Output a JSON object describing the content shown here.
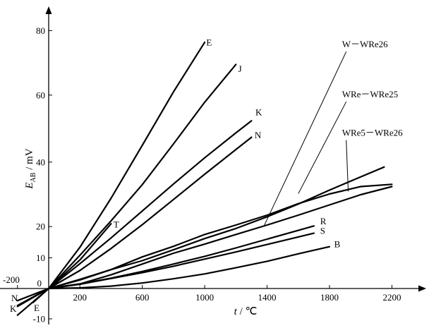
{
  "chart_data": {
    "type": "line",
    "title": "",
    "xlabel": {
      "var": "t",
      "sep": " / ",
      "unit": "℃"
    },
    "ylabel": {
      "var": "E",
      "sub": "AB",
      "sep": " / ",
      "unit": "mV"
    },
    "xlim": [
      -200,
      2300
    ],
    "ylim": [
      -12,
      90
    ],
    "x_ticks": [
      -200,
      0,
      200,
      600,
      1000,
      1400,
      1800,
      2200
    ],
    "x_tick_labels": [
      "-200",
      "",
      "200",
      "600",
      "1000",
      "1400",
      "1800",
      "2200"
    ],
    "y_ticks": [
      -10,
      0,
      10,
      20,
      40,
      60,
      80
    ],
    "y_tick_labels": [
      "-10",
      "0",
      "10",
      "20",
      "40",
      "60",
      "80"
    ],
    "grid": false,
    "legend": "none",
    "series": [
      {
        "name": "E",
        "x": [
          -200,
          0,
          200,
          400,
          600,
          800,
          1000
        ],
        "y": [
          -8.8,
          0,
          13.4,
          28.9,
          45.1,
          61.0,
          76.4
        ]
      },
      {
        "name": "J",
        "x": [
          -100,
          0,
          200,
          400,
          600,
          800,
          1000,
          1200
        ],
        "y": [
          -4.6,
          0,
          10.8,
          21.8,
          33.1,
          45.5,
          57.9,
          69.5
        ]
      },
      {
        "name": "K",
        "x": [
          -200,
          0,
          200,
          400,
          600,
          800,
          1000,
          1200,
          1300
        ],
        "y": [
          -5.9,
          0,
          8.1,
          16.4,
          24.9,
          33.3,
          41.3,
          48.8,
          52.4
        ]
      },
      {
        "name": "N",
        "x": [
          -200,
          0,
          200,
          400,
          600,
          800,
          1000,
          1200,
          1300
        ],
        "y": [
          -4.0,
          0,
          5.9,
          13.0,
          20.6,
          28.5,
          36.3,
          43.8,
          47.5
        ]
      },
      {
        "name": "T",
        "x": [
          -200,
          0,
          200,
          400
        ],
        "y": [
          -5.6,
          0,
          9.3,
          20.9
        ]
      },
      {
        "name": "R",
        "x": [
          0,
          200,
          400,
          600,
          800,
          1000,
          1200,
          1400,
          1600,
          1700
        ],
        "y": [
          0,
          1.5,
          3.4,
          5.6,
          8.0,
          10.5,
          13.2,
          16.0,
          18.8,
          20.2
        ]
      },
      {
        "name": "S",
        "x": [
          0,
          200,
          400,
          600,
          800,
          1000,
          1200,
          1400,
          1600,
          1700
        ],
        "y": [
          0,
          1.4,
          3.3,
          5.2,
          7.3,
          9.6,
          11.9,
          14.3,
          16.7,
          17.9
        ]
      },
      {
        "name": "B",
        "x": [
          0,
          200,
          400,
          600,
          800,
          1000,
          1200,
          1400,
          1600,
          1800
        ],
        "y": [
          0,
          0.2,
          0.8,
          1.8,
          3.2,
          4.8,
          6.8,
          8.9,
          11.3,
          13.6
        ]
      },
      {
        "name": "W－WRe26",
        "x": [
          0,
          200,
          400,
          600,
          800,
          1000,
          1200,
          1400,
          1600,
          1800,
          2000,
          2200
        ],
        "y": [
          0,
          2.8,
          6.2,
          10.3,
          13.7,
          17.5,
          20.5,
          23.6,
          27.2,
          30.2,
          32.5,
          33.2
        ]
      },
      {
        "name": "WRe－WRe25",
        "x": [
          0,
          200,
          400,
          600,
          800,
          1000,
          1200,
          1400,
          1600,
          1800,
          2000,
          2150
        ],
        "y": [
          0,
          3.0,
          6.2,
          9.1,
          12.6,
          16.2,
          19.4,
          23.1,
          27.1,
          31.4,
          35.5,
          38.5
        ]
      },
      {
        "name": "WRe5－WRe26",
        "x": [
          0,
          200,
          400,
          600,
          800,
          1000,
          1200,
          1400,
          1600,
          1800,
          2000,
          2200
        ],
        "y": [
          0,
          1.5,
          4.5,
          8.0,
          11.5,
          14.4,
          17.5,
          20.5,
          23.6,
          26.8,
          30.0,
          32.5
        ]
      }
    ],
    "labels": [
      {
        "series": "E",
        "text": "E",
        "at": [
          1010,
          75.4
        ]
      },
      {
        "series": "J",
        "text": "J",
        "at": [
          1215,
          67.2
        ]
      },
      {
        "series": "K",
        "text": "K",
        "at": [
          1325,
          54
        ]
      },
      {
        "series": "N",
        "text": "N",
        "at": [
          1320,
          47.2
        ]
      },
      {
        "series": "T",
        "text": "T",
        "at": [
          415,
          19.7
        ]
      },
      {
        "series": "R",
        "text": "R",
        "at": [
          1740,
          20.7
        ]
      },
      {
        "series": "S",
        "text": "S",
        "at": [
          1740,
          17.7
        ]
      },
      {
        "series": "B",
        "text": "B",
        "at": [
          1830,
          13.4
        ]
      },
      {
        "series": "W－WRe26",
        "text": "W－WRe26",
        "at": [
          1880,
          74.8
        ],
        "leader_to": [
          1380,
          20.2
        ]
      },
      {
        "series": "WRe－WRe25",
        "text": "WRe－WRe25",
        "at": [
          1880,
          59.3
        ],
        "leader_to": [
          1600,
          30.3
        ]
      },
      {
        "series": "WRe5－WRe26",
        "text": "WRe5－WRe26",
        "at": [
          1880,
          47.9
        ],
        "leader_to": [
          1920,
          31.0
        ]
      }
    ],
    "negative_end_labels": [
      "N",
      "K",
      "E"
    ]
  }
}
